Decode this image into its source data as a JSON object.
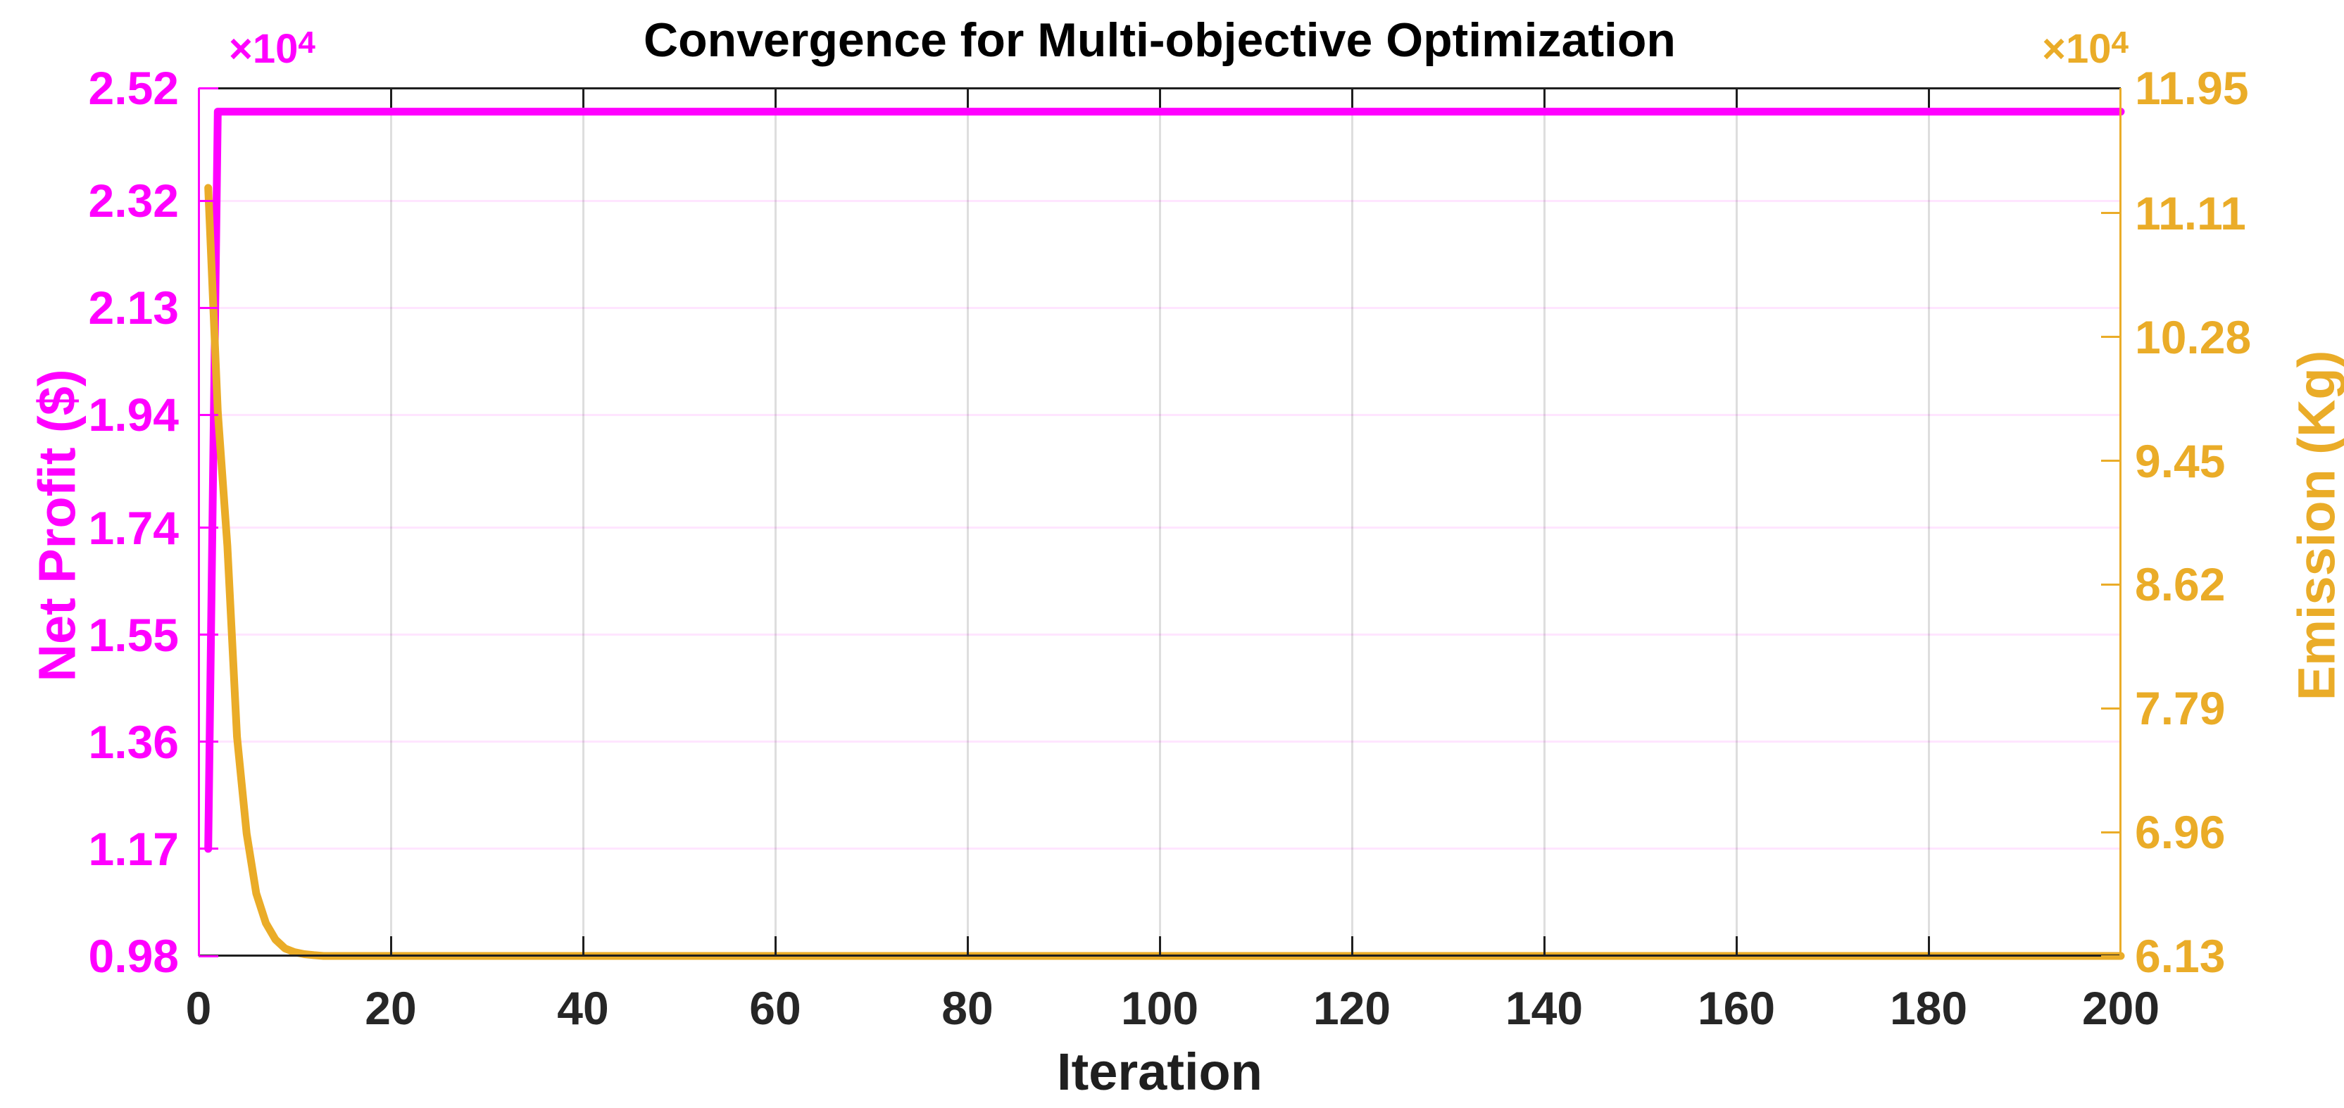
{
  "title": "Convergence for Multi-objective Optimization",
  "xlabel": "Iteration",
  "left_axis": {
    "label": "Net Profit ($)",
    "color": "#FF00FF",
    "multiplier_base": "×10",
    "multiplier_exp": "4",
    "tick_labels": [
      "2.52",
      "2.32",
      "2.13",
      "1.94",
      "1.74",
      "1.55",
      "1.36",
      "1.17",
      "0.98"
    ]
  },
  "right_axis": {
    "label": "Emission (Kg)",
    "color": "#EAAC28",
    "multiplier_base": "×10",
    "multiplier_exp": "4",
    "tick_labels": [
      "11.95",
      "11.11",
      "10.28",
      "9.45",
      "8.62",
      "7.79",
      "6.96",
      "6.13"
    ]
  },
  "x_axis": {
    "tick_labels": [
      "0",
      "20",
      "40",
      "60",
      "80",
      "100",
      "120",
      "140",
      "160",
      "180",
      "200"
    ]
  },
  "chart_data": {
    "type": "line",
    "title": "Convergence for Multi-objective Optimization",
    "xlabel": "Iteration",
    "grid": true,
    "xlim": [
      0,
      200
    ],
    "x_tick_values": [
      0,
      20,
      40,
      60,
      80,
      100,
      120,
      140,
      160,
      180,
      200
    ],
    "left_ylabel": "Net Profit ($)",
    "left_ylim": [
      9800,
      25200
    ],
    "left_tick_values": [
      25200,
      23200,
      21300,
      19400,
      17400,
      15500,
      13600,
      11700,
      9800
    ],
    "right_ylabel": "Emission (Kg)",
    "right_ylim": [
      61300,
      119500
    ],
    "right_tick_values": [
      119500,
      111100,
      102800,
      94500,
      86200,
      77900,
      69600,
      61300
    ],
    "series": [
      {
        "name": "Net Profit ($)",
        "axis": "left",
        "color": "#FF00FF",
        "x": [
          1,
          2,
          200
        ],
        "y": [
          11700,
          24780,
          24780
        ]
      },
      {
        "name": "Emission (Kg)",
        "axis": "right",
        "color": "#EAAC28",
        "x": [
          1,
          2,
          3,
          4,
          5,
          6,
          7,
          8,
          9,
          10,
          11,
          12,
          13,
          200
        ],
        "y": [
          112800,
          97800,
          88800,
          76000,
          69500,
          65500,
          63500,
          62400,
          61800,
          61550,
          61420,
          61350,
          61300,
          61300
        ]
      }
    ]
  }
}
